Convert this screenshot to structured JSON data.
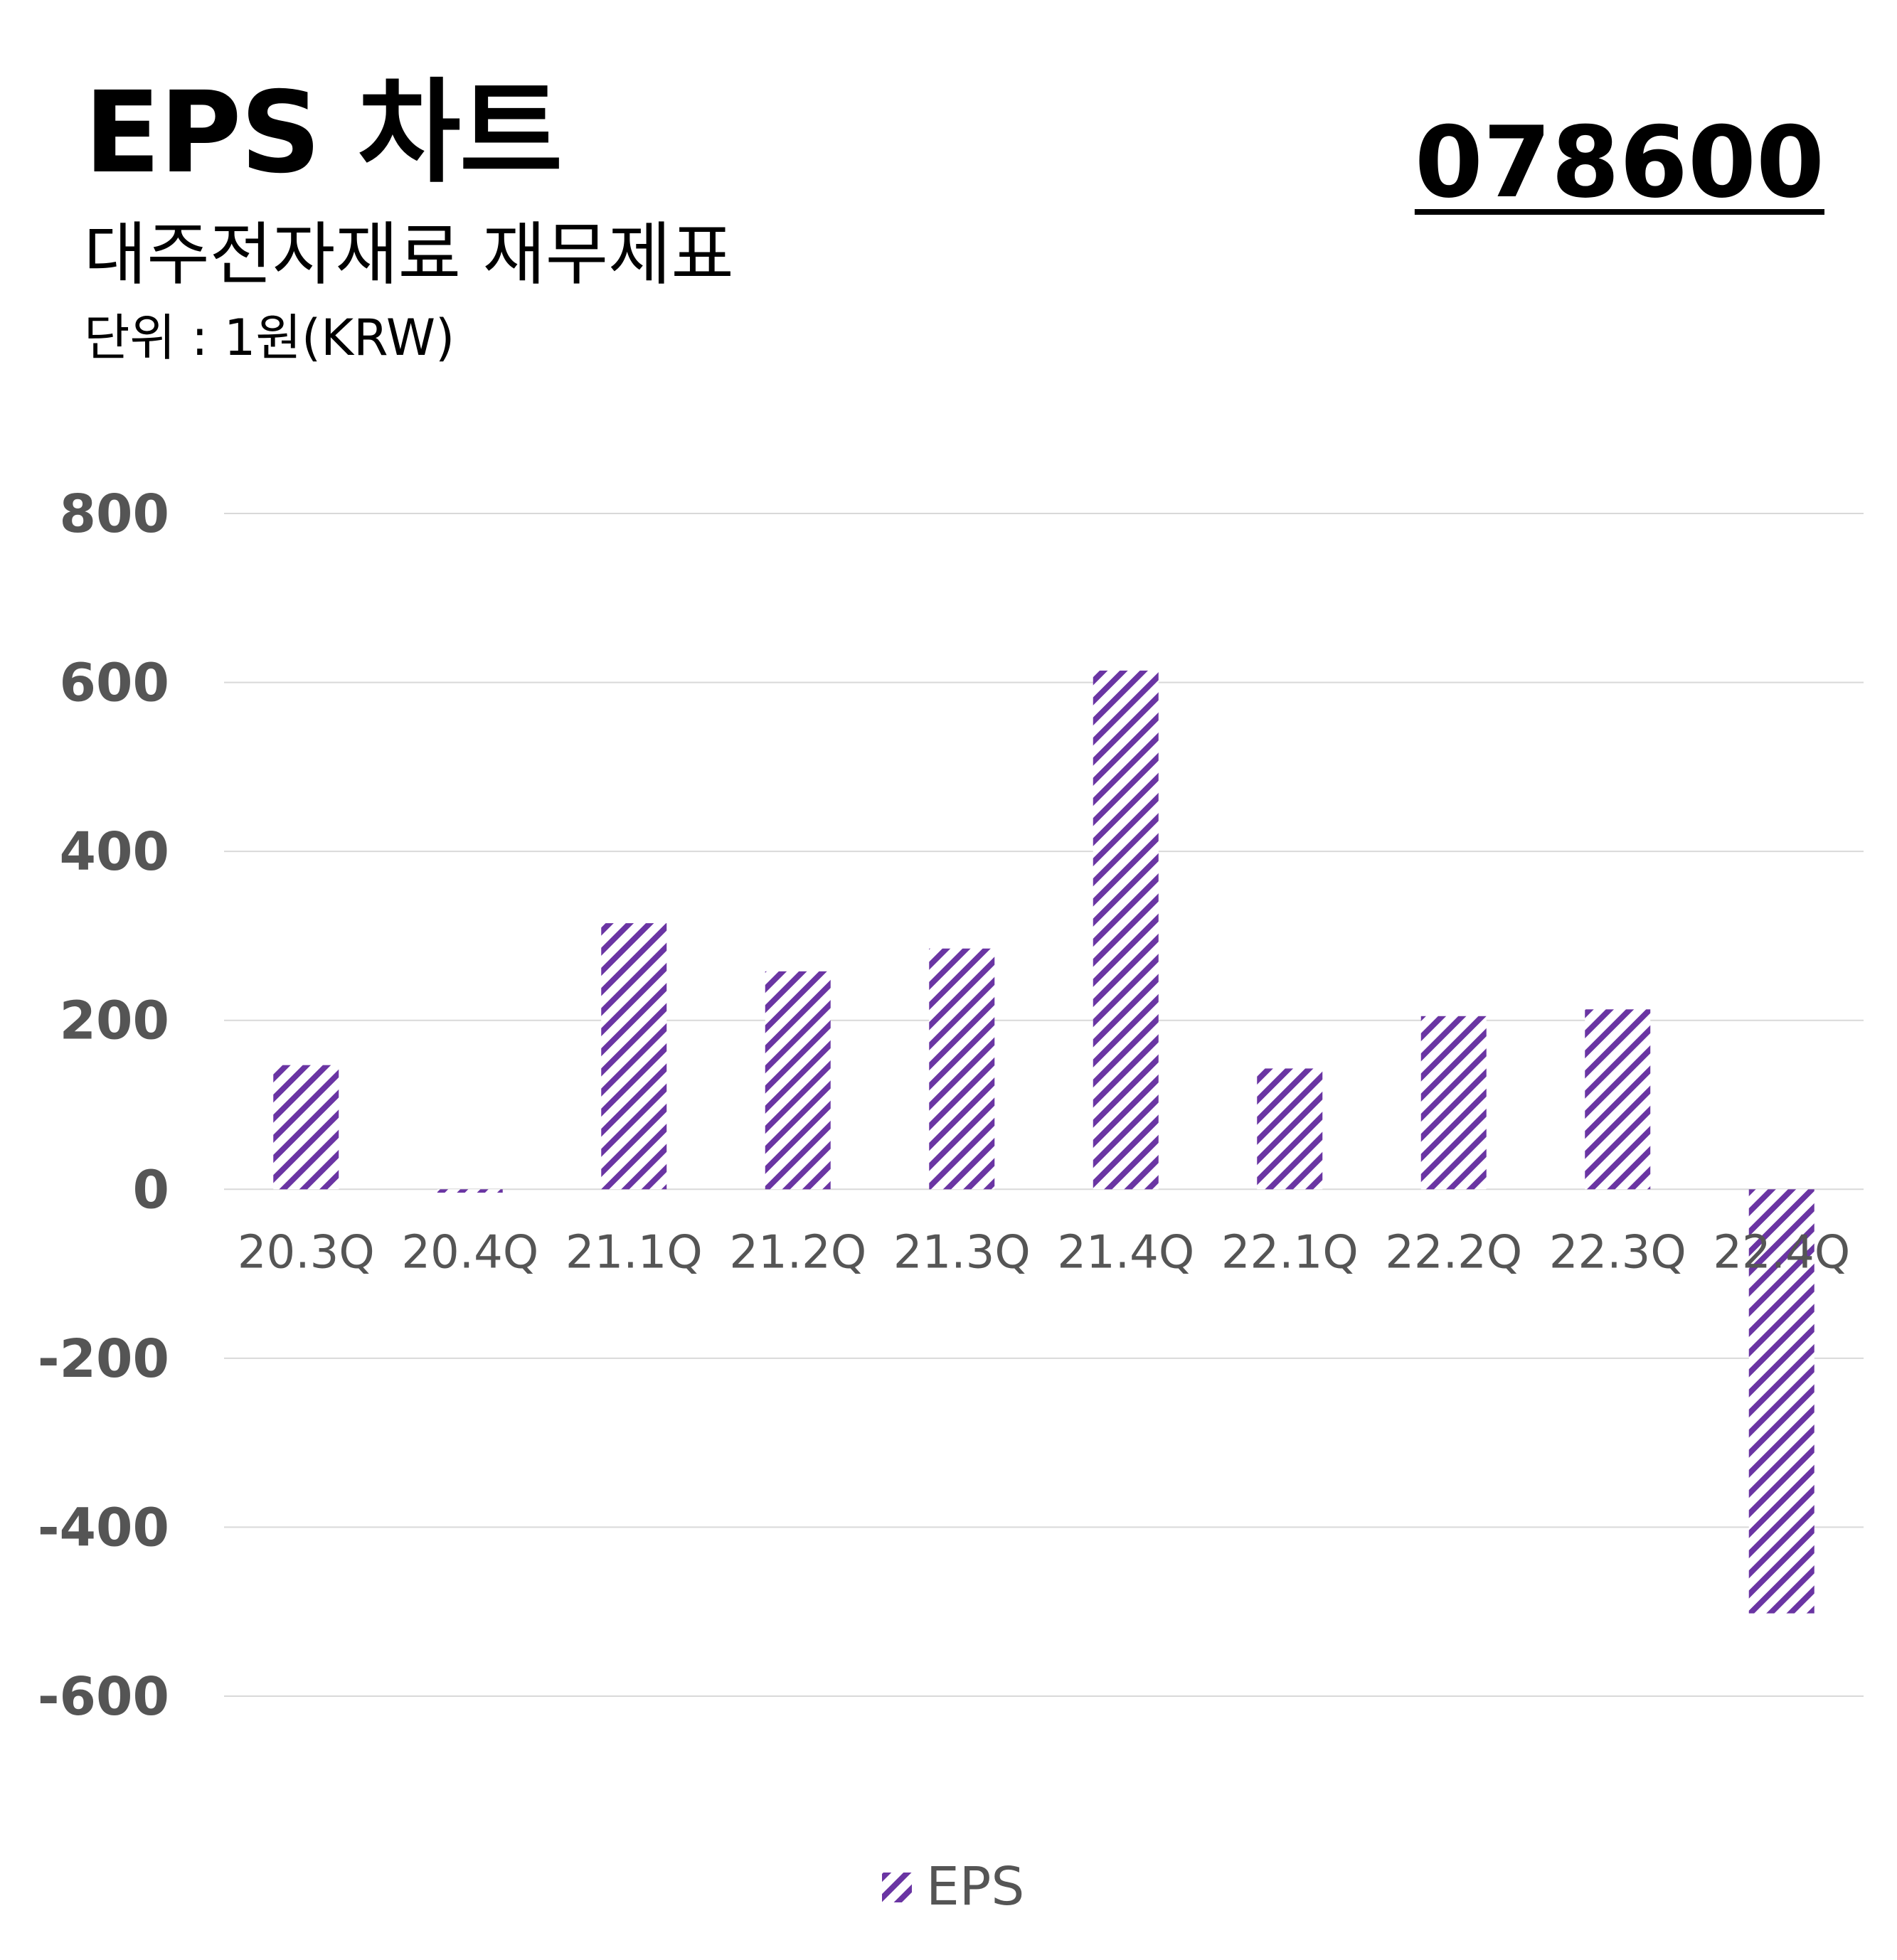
{
  "header": {
    "title": "EPS 차트",
    "subtitle": "대주전자재료 재무제표",
    "unit": "단위 : 1원(KRW)",
    "code": "078600"
  },
  "colors": {
    "bar": "#6a35a3",
    "grid": "#d9d9d9",
    "axis_text": "#555555"
  },
  "chart_data": {
    "type": "bar",
    "categories": [
      "20.3Q",
      "20.4Q",
      "21.1Q",
      "21.2Q",
      "21.3Q",
      "21.4Q",
      "22.1Q",
      "22.2Q",
      "22.3Q",
      "22.4Q"
    ],
    "series": [
      {
        "name": "EPS",
        "values": [
          147,
          -4,
          315,
          258,
          285,
          614,
          143,
          205,
          213,
          -502
        ]
      }
    ],
    "yticks": [
      800,
      600,
      400,
      200,
      0,
      -200,
      -400,
      -600
    ],
    "ylim": [
      -600,
      800
    ],
    "grid": true,
    "legend": "bottom-center",
    "pattern": "diagonal-hatch"
  }
}
